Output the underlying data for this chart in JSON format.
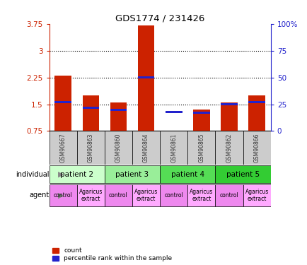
{
  "title": "GDS1774 / 231426",
  "samples": [
    "GSM90667",
    "GSM90863",
    "GSM90860",
    "GSM90864",
    "GSM90861",
    "GSM90865",
    "GSM90862",
    "GSM90866"
  ],
  "count_values": [
    2.3,
    1.75,
    1.55,
    3.7,
    0.75,
    1.35,
    1.55,
    1.75
  ],
  "percentile_values": [
    27,
    22,
    20,
    50,
    18,
    17,
    25,
    27
  ],
  "ylim_left": [
    0.75,
    3.75
  ],
  "ylim_right": [
    0,
    100
  ],
  "yticks_left": [
    0.75,
    1.5,
    2.25,
    3.0,
    3.75
  ],
  "yticks_right": [
    0,
    25,
    50,
    75,
    100
  ],
  "ytick_labels_left": [
    "0.75",
    "1.5",
    "2.25",
    "3",
    "3.75"
  ],
  "ytick_labels_right": [
    "0",
    "25",
    "50",
    "75",
    "100%"
  ],
  "hlines": [
    1.5,
    2.25,
    3.0
  ],
  "individuals": [
    {
      "label": "patient 2",
      "start": 0,
      "end": 2,
      "color": "#ccffcc"
    },
    {
      "label": "patient 3",
      "start": 2,
      "end": 4,
      "color": "#99ee99"
    },
    {
      "label": "patient 4",
      "start": 4,
      "end": 6,
      "color": "#55dd55"
    },
    {
      "label": "patient 5",
      "start": 6,
      "end": 8,
      "color": "#33cc33"
    }
  ],
  "agents": [
    {
      "label": "control",
      "start": 0,
      "end": 1,
      "color": "#ee88ee"
    },
    {
      "label": "Agaricus\nextract",
      "start": 1,
      "end": 2,
      "color": "#ffaaff"
    },
    {
      "label": "control",
      "start": 2,
      "end": 3,
      "color": "#ee88ee"
    },
    {
      "label": "Agaricus\nextract",
      "start": 3,
      "end": 4,
      "color": "#ffaaff"
    },
    {
      "label": "control",
      "start": 4,
      "end": 5,
      "color": "#ee88ee"
    },
    {
      "label": "Agaricus\nextract",
      "start": 5,
      "end": 6,
      "color": "#ffaaff"
    },
    {
      "label": "control",
      "start": 6,
      "end": 7,
      "color": "#ee88ee"
    },
    {
      "label": "Agaricus\nextract",
      "start": 7,
      "end": 8,
      "color": "#ffaaff"
    }
  ],
  "bar_color": "#cc2200",
  "percentile_color": "#2222cc",
  "bar_width": 0.6,
  "left_axis_color": "#cc2200",
  "right_axis_color": "#2222cc",
  "gsm_bg": "#cccccc",
  "legend_items": [
    "count",
    "percentile rank within the sample"
  ]
}
